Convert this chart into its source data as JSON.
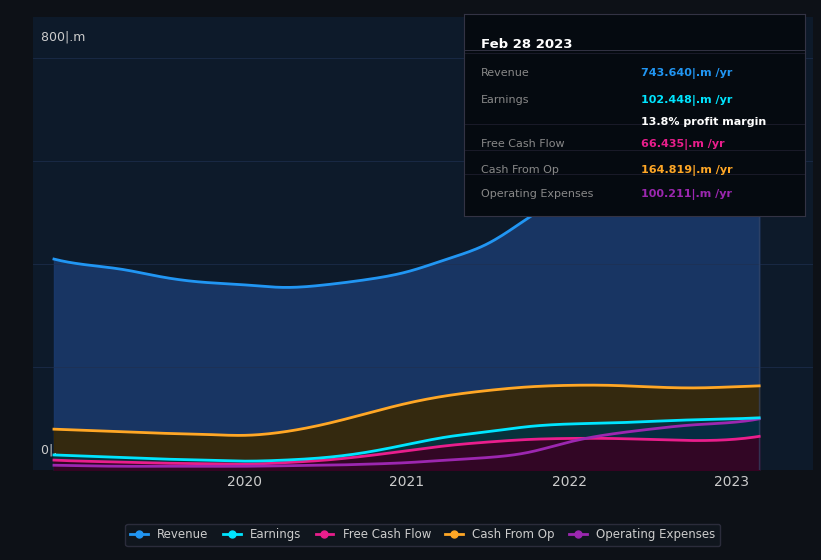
{
  "background_color": "#0d1117",
  "plot_bg_color": "#0d1a2a",
  "grid_color": "#1e3050",
  "text_color": "#cccccc",
  "title_color": "#ffffff",
  "ylabel_text": "800|​.​m",
  "y0_text": "0|​.​",
  "xlim": [
    2018.7,
    2023.5
  ],
  "ylim": [
    0,
    880
  ],
  "yticks": [
    0,
    200,
    400,
    600,
    800
  ],
  "xticks": [
    2020,
    2021,
    2022,
    2023
  ],
  "series": {
    "Revenue": {
      "color": "#2196f3",
      "fill_color": "#1a3a6e",
      "x": [
        2018.83,
        2019.0,
        2019.25,
        2019.5,
        2019.75,
        2020.0,
        2020.25,
        2020.5,
        2020.75,
        2021.0,
        2021.25,
        2021.5,
        2021.75,
        2022.0,
        2022.25,
        2022.5,
        2022.75,
        2023.0,
        2023.17
      ],
      "y": [
        410,
        400,
        390,
        375,
        365,
        360,
        355,
        360,
        370,
        385,
        410,
        440,
        490,
        540,
        590,
        640,
        690,
        730,
        743
      ]
    },
    "Earnings": {
      "color": "#00e5ff",
      "fill_color": "#003344",
      "x": [
        2018.83,
        2019.0,
        2019.25,
        2019.5,
        2019.75,
        2020.0,
        2020.25,
        2020.5,
        2020.75,
        2021.0,
        2021.25,
        2021.5,
        2021.75,
        2022.0,
        2022.25,
        2022.5,
        2022.75,
        2023.0,
        2023.17
      ],
      "y": [
        30,
        28,
        25,
        22,
        20,
        18,
        20,
        25,
        35,
        50,
        65,
        75,
        85,
        90,
        92,
        95,
        98,
        100,
        102
      ]
    },
    "Free Cash Flow": {
      "color": "#e91e8c",
      "fill_color": "#3a0020",
      "x": [
        2018.83,
        2019.0,
        2019.25,
        2019.5,
        2019.75,
        2020.0,
        2020.25,
        2020.5,
        2020.75,
        2021.0,
        2021.25,
        2021.5,
        2021.75,
        2022.0,
        2022.25,
        2022.5,
        2022.75,
        2023.0,
        2023.17
      ],
      "y": [
        20,
        18,
        16,
        14,
        13,
        12,
        15,
        20,
        28,
        38,
        48,
        55,
        60,
        62,
        62,
        60,
        58,
        60,
        66
      ]
    },
    "Cash From Op": {
      "color": "#ffa726",
      "fill_color": "#3a2800",
      "x": [
        2018.83,
        2019.0,
        2019.25,
        2019.5,
        2019.75,
        2020.0,
        2020.25,
        2020.5,
        2020.75,
        2021.0,
        2021.25,
        2021.5,
        2021.75,
        2022.0,
        2022.25,
        2022.5,
        2022.75,
        2023.0,
        2023.17
      ],
      "y": [
        80,
        78,
        75,
        72,
        70,
        68,
        75,
        90,
        110,
        130,
        145,
        155,
        162,
        165,
        165,
        162,
        160,
        162,
        164
      ]
    },
    "Operating Expenses": {
      "color": "#9c27b0",
      "fill_color": "#2a0040",
      "x": [
        2018.83,
        2019.0,
        2019.25,
        2019.5,
        2019.75,
        2020.0,
        2020.25,
        2020.5,
        2020.75,
        2021.0,
        2021.25,
        2021.5,
        2021.75,
        2022.0,
        2022.25,
        2022.5,
        2022.75,
        2023.0,
        2023.17
      ],
      "y": [
        10,
        9,
        8,
        8,
        8,
        8,
        9,
        10,
        12,
        15,
        20,
        25,
        35,
        55,
        70,
        80,
        88,
        93,
        100
      ]
    }
  },
  "tooltip": {
    "date": "Feb 28 2023",
    "bg_color": "#000000",
    "border_color": "#333333",
    "text_color": "#888888",
    "rows": [
      {
        "label": "Revenue",
        "value": "743.640",
        "suffix": "|​.​m /yr",
        "value_color": "#2196f3"
      },
      {
        "label": "Earnings",
        "value": "102.448",
        "suffix": "|​.​m /yr",
        "value_color": "#00e5ff"
      },
      {
        "label": "",
        "value": "13.8%",
        "suffix": " profit margin",
        "value_color": "#ffffff"
      },
      {
        "label": "Free Cash Flow",
        "value": "66.435",
        "suffix": "|​.​m /yr",
        "value_color": "#e91e8c"
      },
      {
        "label": "Cash From Op",
        "value": "164.819",
        "suffix": "|​.​m /yr",
        "value_color": "#ffa726"
      },
      {
        "label": "Operating Expenses",
        "value": "100.211",
        "suffix": "|​.​m /yr",
        "value_color": "#9c27b0"
      }
    ]
  },
  "legend": [
    {
      "label": "Revenue",
      "color": "#2196f3"
    },
    {
      "label": "Earnings",
      "color": "#00e5ff"
    },
    {
      "label": "Free Cash Flow",
      "color": "#e91e8c"
    },
    {
      "label": "Cash From Op",
      "color": "#ffa726"
    },
    {
      "label": "Operating Expenses",
      "color": "#9c27b0"
    }
  ],
  "vline_x": 2023.17,
  "vline_color": "#334466"
}
